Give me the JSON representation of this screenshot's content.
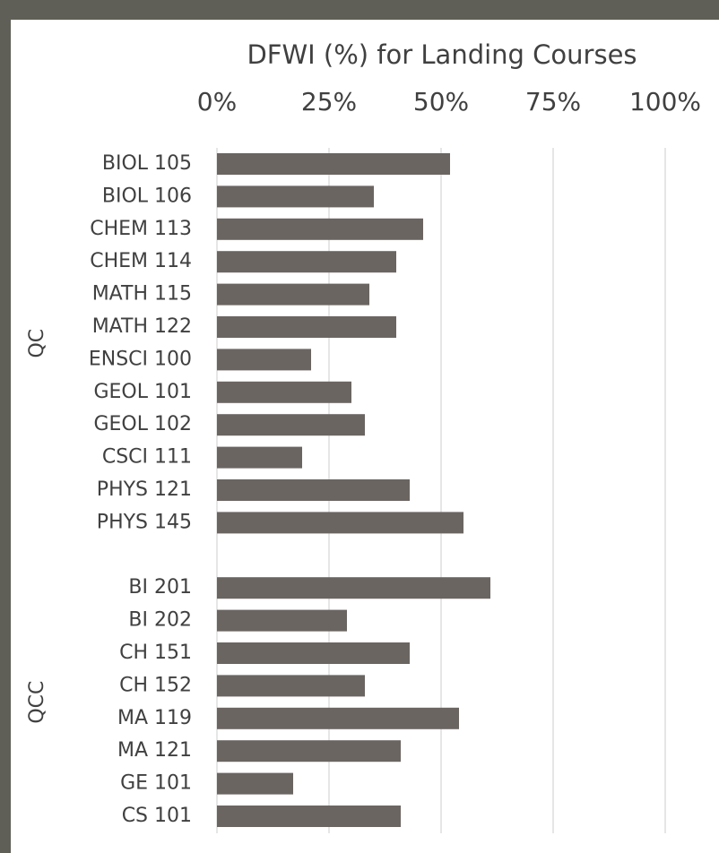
{
  "chart_data": {
    "type": "bar",
    "orientation": "horizontal",
    "title": "DFWI (%) for Landing Courses",
    "color": "#6b6562",
    "grid": true,
    "xlim": [
      0,
      100
    ],
    "xticks": [
      {
        "value": 0,
        "label": "0%"
      },
      {
        "value": 25,
        "label": "25%"
      },
      {
        "value": 50,
        "label": "50%"
      },
      {
        "value": 75,
        "label": "75%"
      },
      {
        "value": 100,
        "label": "100%"
      }
    ],
    "groups": [
      {
        "name": "QC",
        "categories": [
          "BIOL 105",
          "BIOL 106",
          "CHEM 113",
          "CHEM 114",
          "MATH 115",
          "MATH 122",
          "ENSCI 100",
          "GEOL 101",
          "GEOL 102",
          "CSCI 111",
          "PHYS 121",
          "PHYS 145"
        ],
        "values": [
          52,
          35,
          46,
          40,
          34,
          40,
          21,
          30,
          33,
          19,
          43,
          55
        ]
      },
      {
        "name": "QCC",
        "categories": [
          "BI 201",
          "BI 202",
          "CH 151",
          "CH 152",
          "MA 119",
          "MA 121",
          "GE 101",
          "CS 101"
        ],
        "values": [
          61,
          29,
          43,
          33,
          54,
          41,
          17,
          41
        ]
      }
    ]
  }
}
